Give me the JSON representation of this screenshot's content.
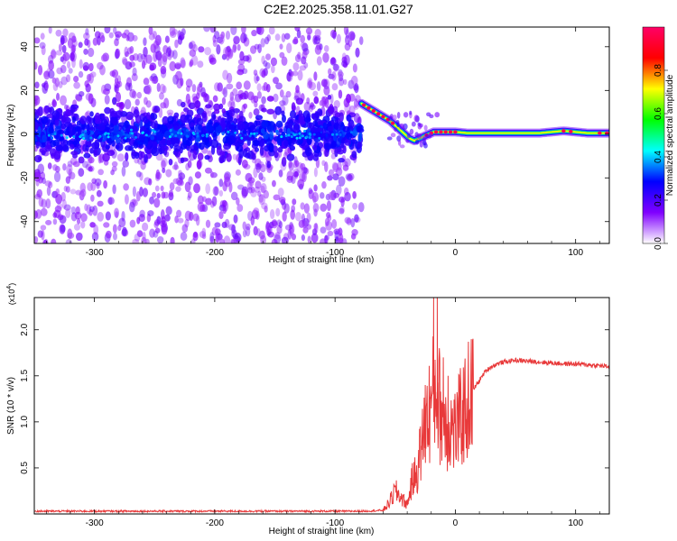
{
  "title": "C2E2.2025.358.11.01.G27",
  "chart_data": [
    {
      "type": "heatmap",
      "name": "spectrogram",
      "xlabel": "Height of straight line (km)",
      "ylabel": "Frequency (Hz)",
      "xlim": [
        -350,
        128
      ],
      "ylim": [
        -50,
        49
      ],
      "x_ticks": [
        -300,
        -200,
        -100,
        0,
        100
      ],
      "x_tick_labels": [
        "-300",
        "-200",
        "-100",
        "0",
        "100"
      ],
      "y_ticks": [
        -40,
        -20,
        0,
        20,
        40
      ],
      "y_tick_labels": [
        "-40",
        "-20",
        "0",
        "20",
        "40"
      ],
      "colorbar": {
        "label": "Normalized spectral amplitude",
        "range": [
          0,
          1
        ],
        "ticks": [
          0.0,
          0.2,
          0.4,
          0.6,
          0.8
        ],
        "tick_labels": [
          "0.0",
          "0.2",
          "0.4",
          "0.6",
          "0.8"
        ],
        "colors": [
          "#ffffff",
          "#8000ff",
          "#0000ff",
          "#00ffff",
          "#00ff00",
          "#ffff00",
          "#ff0000",
          "#ff0066"
        ]
      },
      "noise_region": {
        "x_range": [
          -350,
          -78
        ],
        "core_freq_range": [
          -12,
          10
        ],
        "halo_freq_range": [
          -50,
          49
        ]
      },
      "tone_track": {
        "x": [
          -78,
          -72,
          -66,
          -60,
          -54,
          -48,
          -42,
          -38,
          -34,
          -30,
          -26,
          -22,
          -18,
          -14,
          -10,
          -4,
          0,
          10,
          30,
          50,
          70,
          90,
          110,
          128
        ],
        "freq_hz": [
          14,
          12,
          10,
          8,
          6,
          3,
          0,
          -2,
          -3,
          -2,
          -1,
          0,
          1,
          1,
          1,
          1,
          1,
          0.5,
          0.5,
          0.5,
          0.5,
          1.5,
          0.5,
          0.5
        ]
      }
    },
    {
      "type": "line",
      "name": "snr",
      "xlabel": "Height of straight line (km)",
      "ylabel": "SNR (10 * v/v)",
      "y_multiplier_label": "(x10",
      "y_multiplier_exp": "4",
      "y_multiplier_close": ")",
      "xlim": [
        -350,
        128
      ],
      "ylim": [
        0,
        2.35
      ],
      "x_ticks": [
        -300,
        -200,
        -100,
        0,
        100
      ],
      "x_tick_labels": [
        "-300",
        "-200",
        "-100",
        "0",
        "100"
      ],
      "y_ticks": [
        0.5,
        1.0,
        1.5,
        2.0
      ],
      "y_tick_labels": [
        "0.5",
        "1.0",
        "1.5",
        "2.0"
      ],
      "color": "#e8393a",
      "series": [
        {
          "x": [
            -350,
            -300,
            -250,
            -200,
            -150,
            -100,
            -75,
            -60,
            -55,
            -50,
            -45,
            -40,
            -36,
            -32,
            -28,
            -24,
            -20,
            -16,
            -12,
            -8,
            -4,
            0,
            5,
            10,
            15,
            20,
            25,
            30,
            35,
            40,
            50,
            60,
            70,
            80,
            90,
            100,
            110,
            120,
            128
          ],
          "values": [
            0.03,
            0.03,
            0.03,
            0.03,
            0.03,
            0.03,
            0.03,
            0.04,
            0.12,
            0.25,
            0.18,
            0.1,
            0.35,
            0.45,
            0.75,
            1.0,
            1.2,
            1.4,
            1.1,
            1.0,
            0.95,
            0.9,
            1.05,
            1.2,
            1.35,
            1.45,
            1.55,
            1.6,
            1.63,
            1.65,
            1.67,
            1.66,
            1.65,
            1.64,
            1.63,
            1.63,
            1.62,
            1.61,
            1.6
          ]
        }
      ],
      "spikes": [
        {
          "x": -18,
          "value": 2.35
        },
        {
          "x": -15,
          "value": 2.35
        },
        {
          "x": -25,
          "value": 1.4
        },
        {
          "x": -10,
          "value": 1.7
        },
        {
          "x": -6,
          "value": 1.5
        }
      ]
    }
  ]
}
